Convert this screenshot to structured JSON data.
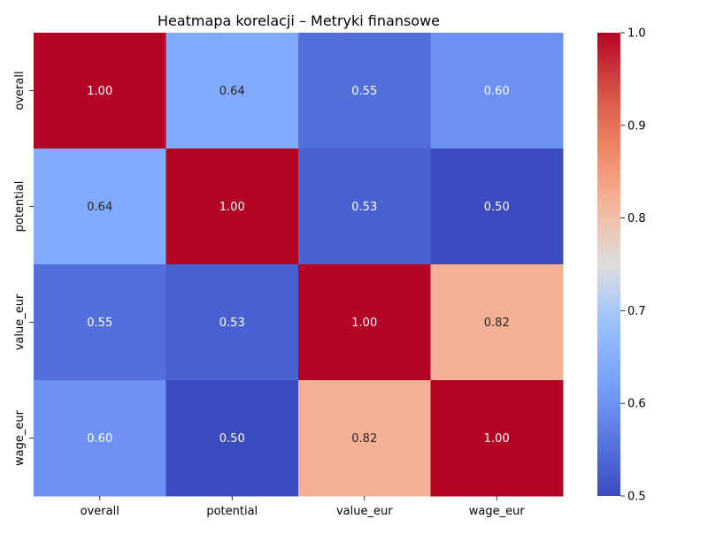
{
  "chart_data": {
    "type": "heatmap",
    "title": "Heatmapa korelacji – Metryki finansowe",
    "x_categories": [
      "overall",
      "potential",
      "value_eur",
      "wage_eur"
    ],
    "y_categories": [
      "overall",
      "potential",
      "value_eur",
      "wage_eur"
    ],
    "values": [
      [
        1.0,
        0.64,
        0.55,
        0.6
      ],
      [
        0.64,
        1.0,
        0.53,
        0.5
      ],
      [
        0.55,
        0.53,
        1.0,
        0.82
      ],
      [
        0.6,
        0.5,
        0.82,
        1.0
      ]
    ],
    "annotation_format": "2 decimals",
    "colormap": "coolwarm",
    "color_range": [
      0.5,
      1.0
    ],
    "colorbar": {
      "ticks": [
        0.5,
        0.6,
        0.7,
        0.8,
        0.9,
        1.0
      ],
      "tick_labels": [
        "0.5",
        "0.6",
        "0.7",
        "0.8",
        "0.9",
        "1.0"
      ]
    },
    "grid": false
  }
}
